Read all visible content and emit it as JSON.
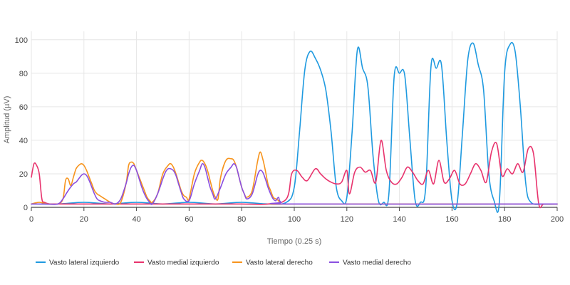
{
  "chart_data": {
    "type": "line",
    "title": "",
    "xlabel": "Tiempo (0.25 s)",
    "ylabel": "Amplitud (µV)",
    "xlim": [
      0,
      200
    ],
    "ylim": [
      0,
      105
    ],
    "xticks": [
      0,
      20,
      40,
      60,
      80,
      100,
      120,
      140,
      160,
      180,
      200
    ],
    "yticks": [
      0,
      20,
      40,
      60,
      80,
      100
    ],
    "grid": true,
    "legend_position": "bottom",
    "series": [
      {
        "name": "Vasto lateral izquierdo",
        "color": "#1f9ae0",
        "x": [
          0,
          10,
          20,
          30,
          40,
          50,
          60,
          70,
          80,
          90,
          97,
          100,
          102,
          104,
          106,
          108,
          110,
          112,
          114,
          116,
          118,
          120,
          122,
          124,
          126,
          128,
          130,
          132,
          134,
          136,
          138,
          140,
          142,
          144,
          146,
          148,
          150,
          152,
          154,
          156,
          158,
          160,
          162,
          164,
          166,
          168,
          170,
          172,
          174,
          176,
          178,
          180,
          182,
          184,
          186,
          188,
          190,
          195,
          200
        ],
        "y": [
          2,
          2,
          3,
          2,
          3,
          2,
          3,
          2,
          3,
          2,
          3,
          12,
          45,
          82,
          93,
          89,
          82,
          70,
          45,
          12,
          4,
          6,
          45,
          94,
          83,
          72,
          30,
          4,
          3,
          8,
          78,
          80,
          79,
          40,
          4,
          3,
          12,
          84,
          83,
          85,
          40,
          4,
          3,
          45,
          88,
          98,
          85,
          70,
          20,
          4,
          3,
          80,
          97,
          93,
          60,
          15,
          3,
          2,
          2
        ]
      },
      {
        "name": "Vasto medial izquierdo",
        "color": "#e8336d",
        "x": [
          0,
          1,
          2,
          3,
          4,
          5,
          7,
          10,
          20,
          30,
          40,
          50,
          60,
          70,
          80,
          90,
          97,
          99,
          101,
          103,
          105,
          108,
          110,
          112,
          114,
          116,
          118,
          120,
          121,
          123,
          125,
          127,
          129,
          131,
          133,
          135,
          137,
          139,
          141,
          143,
          145,
          147,
          149,
          151,
          153,
          155,
          157,
          159,
          161,
          163,
          165,
          167,
          169,
          171,
          173,
          175,
          177,
          179,
          181,
          183,
          185,
          187,
          189,
          191,
          193,
          195,
          200
        ],
        "y": [
          18,
          26,
          25,
          20,
          5,
          3,
          2,
          2,
          2,
          2,
          2,
          2,
          2,
          2,
          2,
          2,
          5,
          20,
          22,
          18,
          16,
          23,
          20,
          17,
          15,
          14,
          15,
          22,
          8,
          21,
          24,
          21,
          22,
          15,
          40,
          22,
          15,
          14,
          18,
          24,
          21,
          16,
          14,
          22,
          14,
          28,
          15,
          17,
          22,
          14,
          14,
          20,
          26,
          22,
          15,
          33,
          38,
          19,
          23,
          20,
          26,
          21,
          35,
          32,
          2,
          2,
          2
        ]
      },
      {
        "name": "Vasto lateral derecho",
        "color": "#f7941d",
        "x": [
          0,
          3,
          6,
          10,
          12,
          13,
          14,
          15,
          16,
          17,
          18,
          19,
          20,
          21,
          22,
          23,
          24,
          25,
          26,
          27,
          28,
          30,
          32,
          34,
          36,
          37,
          38,
          39,
          40,
          41,
          42,
          43,
          44,
          45,
          46,
          48,
          50,
          52,
          53,
          54,
          55,
          56,
          57,
          58,
          59,
          60,
          62,
          64,
          65,
          66,
          67,
          68,
          69,
          70,
          71,
          72,
          74,
          76,
          77,
          78,
          79,
          80,
          81,
          82,
          84,
          86,
          87,
          88,
          89,
          90,
          91,
          92,
          93,
          94,
          95,
          100,
          200
        ],
        "y": [
          2,
          3,
          2,
          2,
          5,
          16,
          17,
          13,
          18,
          23,
          25,
          26,
          25,
          22,
          18,
          14,
          10,
          8,
          7,
          6,
          5,
          3,
          2,
          3,
          14,
          25,
          27,
          26,
          22,
          18,
          14,
          10,
          6,
          4,
          3,
          8,
          20,
          25,
          26,
          24,
          20,
          15,
          10,
          7,
          6,
          5,
          20,
          27,
          28,
          26,
          22,
          16,
          10,
          6,
          5,
          18,
          28,
          29,
          28,
          24,
          18,
          12,
          8,
          6,
          10,
          27,
          33,
          29,
          22,
          14,
          10,
          6,
          5,
          4,
          2,
          2,
          2
        ]
      },
      {
        "name": "Vasto medial derecho",
        "color": "#8a4fe0",
        "x": [
          0,
          5,
          10,
          12,
          14,
          16,
          17,
          18,
          19,
          20,
          21,
          22,
          23,
          24,
          25,
          26,
          28,
          30,
          32,
          34,
          36,
          37,
          38,
          39,
          40,
          41,
          42,
          43,
          44,
          45,
          46,
          48,
          50,
          51,
          52,
          53,
          54,
          55,
          56,
          57,
          58,
          60,
          62,
          64,
          65,
          66,
          67,
          68,
          69,
          70,
          72,
          74,
          76,
          77,
          78,
          79,
          80,
          81,
          82,
          84,
          86,
          87,
          88,
          89,
          90,
          91,
          92,
          93,
          94,
          95,
          100,
          200
        ],
        "y": [
          2,
          2,
          2,
          5,
          10,
          14,
          15,
          17,
          19,
          20,
          19,
          16,
          12,
          8,
          5,
          4,
          3,
          3,
          2,
          5,
          14,
          20,
          24,
          25,
          22,
          17,
          12,
          8,
          5,
          3,
          2,
          8,
          17,
          21,
          23,
          23,
          22,
          19,
          14,
          9,
          5,
          4,
          14,
          22,
          26,
          24,
          18,
          12,
          8,
          5,
          12,
          20,
          24,
          26,
          24,
          18,
          12,
          8,
          5,
          8,
          19,
          22,
          21,
          17,
          12,
          8,
          5,
          4,
          6,
          3,
          2,
          2
        ]
      }
    ]
  }
}
